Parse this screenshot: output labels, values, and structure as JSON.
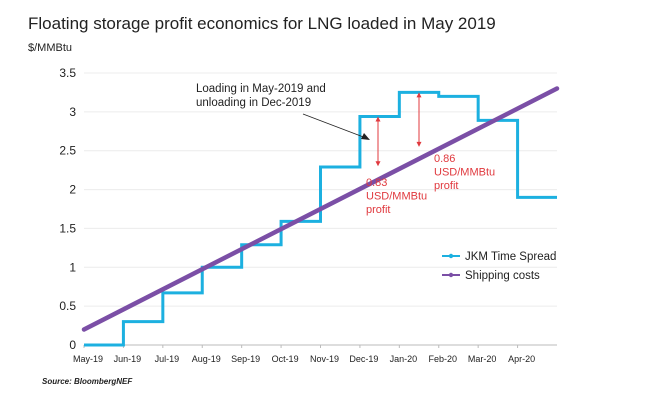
{
  "title": "Floating storage profit economics for LNG loaded in May 2019",
  "source": "Source: BloombergNEF",
  "chart_data": {
    "type": "line",
    "title": "Floating storage profit economics for LNG loaded in May 2019",
    "ylabel": "$/MMBtu",
    "xlabel": "",
    "ylim": [
      0,
      3.5
    ],
    "yticks": [
      0,
      0.5,
      1,
      1.5,
      2,
      2.5,
      3,
      3.5
    ],
    "yticklabels": [
      "0",
      "0.5",
      "1",
      "1.5",
      "2",
      "2.5",
      "3",
      "3.5"
    ],
    "categories": [
      "May-19",
      "Jun-19",
      "Jul-19",
      "Aug-19",
      "Sep-19",
      "Oct-19",
      "Nov-19",
      "Dec-19",
      "Jan-20",
      "Feb-20",
      "Mar-20",
      "Apr-20"
    ],
    "grid": true,
    "legend_position": "right",
    "series": [
      {
        "name": "JKM Time Spread",
        "style": "step",
        "color": "#1cb0e0",
        "values": [
          0,
          0.3,
          0.67,
          1.0,
          1.29,
          1.59,
          2.29,
          2.94,
          3.25,
          3.2,
          2.89,
          1.9
        ]
      },
      {
        "name": "Shipping costs",
        "style": "linear",
        "color": "#7b4fa6",
        "start": 0.2,
        "end": 3.3
      }
    ],
    "annotations": [
      {
        "text": [
          "Loading in May-2019 and",
          "unloading in Dec-2019"
        ],
        "color": "#222222"
      },
      {
        "text": [
          "0.83",
          "USD/MMBtu",
          "profit"
        ],
        "color": "#e0393e",
        "category": "Dec-19",
        "from": 2.94,
        "to": 2.3
      },
      {
        "text": [
          "0.86",
          "USD/MMBtu",
          "profit"
        ],
        "color": "#e0393e",
        "category": "Jan-20",
        "from": 3.25,
        "to": 2.55
      }
    ]
  }
}
